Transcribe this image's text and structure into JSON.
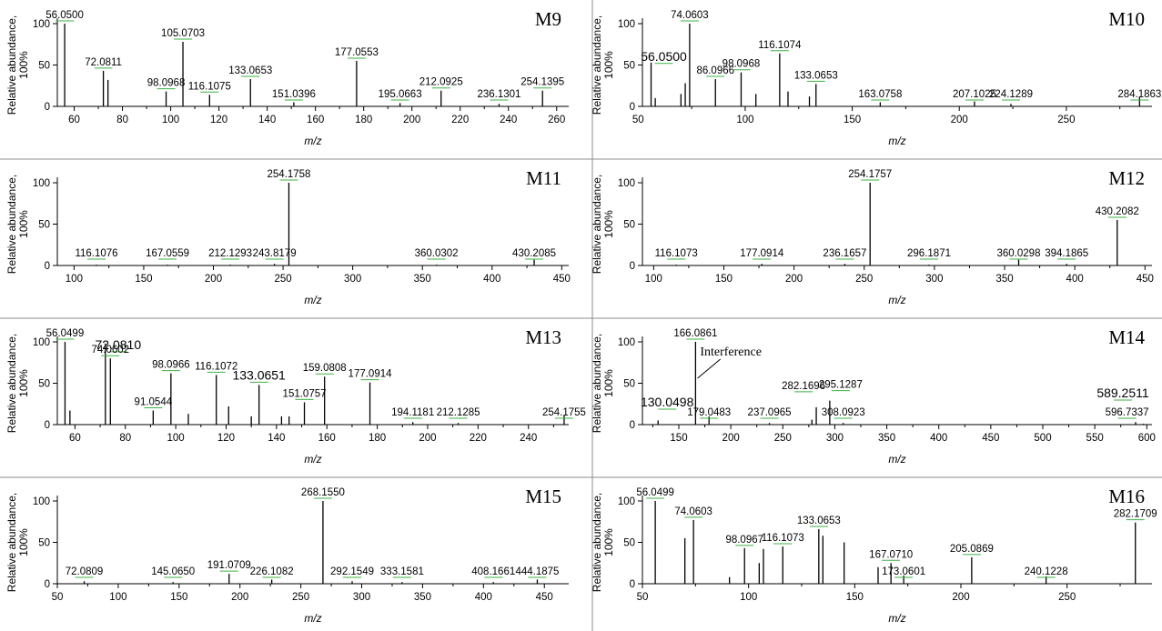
{
  "figure": {
    "grid_lines_color": "#8c8c8c",
    "leader_color": "#3cb043",
    "stick_color": "#000000"
  },
  "chart_data": [
    {
      "type": "bar",
      "panel": "M9",
      "xlabel": "m/z",
      "ylabel_lines": [
        "Relative abundance,",
        "100%"
      ],
      "xlim": [
        53,
        265
      ],
      "ylim": [
        0,
        110
      ],
      "xticks": [
        60,
        80,
        100,
        120,
        140,
        160,
        180,
        200,
        220,
        240,
        260
      ],
      "yticks": [
        0,
        50,
        100
      ],
      "peaks": [
        {
          "mz": 56.05,
          "y": 100,
          "label": "56.0500"
        },
        {
          "mz": 72.08,
          "y": 43,
          "label": "72.0811"
        },
        {
          "mz": 74.0,
          "y": 32
        },
        {
          "mz": 98.1,
          "y": 18,
          "label": "98.0968"
        },
        {
          "mz": 105.07,
          "y": 78,
          "label": "105.0703"
        },
        {
          "mz": 116.11,
          "y": 14,
          "label": "116.1075"
        },
        {
          "mz": 133.07,
          "y": 33,
          "label": "133.0653"
        },
        {
          "mz": 151.04,
          "y": 5,
          "label": "151.0396"
        },
        {
          "mz": 177.06,
          "y": 55,
          "label": "177.0553"
        },
        {
          "mz": 195.07,
          "y": 4,
          "label": "195.0663"
        },
        {
          "mz": 212.09,
          "y": 19,
          "label": "212.0925"
        },
        {
          "mz": 236.13,
          "y": 3,
          "label": "236.1301"
        },
        {
          "mz": 254.14,
          "y": 19,
          "label": "254.1395"
        }
      ]
    },
    {
      "type": "bar",
      "panel": "M10",
      "xlabel": "m/z",
      "ylabel_lines": [
        "Relative abundance,",
        "100%"
      ],
      "xlim": [
        52,
        290
      ],
      "ylim": [
        0,
        110
      ],
      "xticks": [
        50,
        100,
        150,
        200,
        250
      ],
      "yticks": [
        0,
        50,
        100
      ],
      "peaks": [
        {
          "mz": 56.05,
          "y": 53,
          "label": "56.0500"
        },
        {
          "mz": 58.0,
          "y": 10
        },
        {
          "mz": 70.0,
          "y": 15
        },
        {
          "mz": 72.0,
          "y": 28
        },
        {
          "mz": 74.06,
          "y": 100,
          "label": "74.0603"
        },
        {
          "mz": 86.1,
          "y": 33,
          "label": "86.0966"
        },
        {
          "mz": 98.1,
          "y": 41,
          "label": "98.0968"
        },
        {
          "mz": 105.0,
          "y": 15
        },
        {
          "mz": 116.11,
          "y": 64,
          "label": "116.1074"
        },
        {
          "mz": 120.0,
          "y": 18
        },
        {
          "mz": 130.0,
          "y": 12
        },
        {
          "mz": 133.07,
          "y": 27,
          "label": "133.0653"
        },
        {
          "mz": 163.08,
          "y": 5,
          "label": "163.0758"
        },
        {
          "mz": 207.1,
          "y": 6,
          "label": "207.1025"
        },
        {
          "mz": 224.13,
          "y": 3,
          "label": "224.1289"
        },
        {
          "mz": 284.19,
          "y": 11,
          "label": "284.1863"
        }
      ]
    },
    {
      "type": "bar",
      "panel": "M11",
      "xlabel": "m/z",
      "ylabel_lines": [
        "Relative abundance,",
        "100%"
      ],
      "xlim": [
        88,
        455
      ],
      "ylim": [
        0,
        110
      ],
      "xticks": [
        100,
        150,
        200,
        250,
        300,
        350,
        400,
        450
      ],
      "yticks": [
        0,
        50,
        100
      ],
      "peaks": [
        {
          "mz": 116.11,
          "y": 1,
          "label": "116.1076"
        },
        {
          "mz": 167.06,
          "y": 1,
          "label": "167.0559"
        },
        {
          "mz": 212.13,
          "y": 1,
          "label": "212.1293"
        },
        {
          "mz": 243.82,
          "y": 2,
          "label": "243.8179"
        },
        {
          "mz": 254.18,
          "y": 100,
          "label": "254.1758"
        },
        {
          "mz": 360.03,
          "y": 1,
          "label": "360.0302"
        },
        {
          "mz": 430.21,
          "y": 7,
          "label": "430.2085"
        }
      ]
    },
    {
      "type": "bar",
      "panel": "M12",
      "xlabel": "m/z",
      "ylabel_lines": [
        "Relative abundance,",
        "100%"
      ],
      "xlim": [
        92,
        455
      ],
      "ylim": [
        0,
        110
      ],
      "xticks": [
        100,
        150,
        200,
        250,
        300,
        350,
        400,
        450
      ],
      "yticks": [
        0,
        50,
        100
      ],
      "peaks": [
        {
          "mz": 116.11,
          "y": 1,
          "label": "116.1073"
        },
        {
          "mz": 177.09,
          "y": 2,
          "label": "177.0914"
        },
        {
          "mz": 236.17,
          "y": 2,
          "label": "236.1657"
        },
        {
          "mz": 254.18,
          "y": 100,
          "label": "254.1757"
        },
        {
          "mz": 296.19,
          "y": 1,
          "label": "296.1871"
        },
        {
          "mz": 360.03,
          "y": 7,
          "label": "360.0298"
        },
        {
          "mz": 394.19,
          "y": 2,
          "label": "394.1865"
        },
        {
          "mz": 430.21,
          "y": 55,
          "label": "430.2082"
        }
      ]
    },
    {
      "type": "bar",
      "panel": "M13",
      "xlabel": "m/z",
      "ylabel_lines": [
        "Relative abundance,",
        "100%"
      ],
      "xlim": [
        53,
        256
      ],
      "ylim": [
        0,
        110
      ],
      "xticks": [
        60,
        80,
        100,
        120,
        140,
        160,
        180,
        200,
        220,
        240
      ],
      "yticks": [
        0,
        50,
        100
      ],
      "peaks": [
        {
          "mz": 56.05,
          "y": 100,
          "label": "56.0499"
        },
        {
          "mz": 58.0,
          "y": 17
        },
        {
          "mz": 72.08,
          "y": 98,
          "label": "72.0810"
        },
        {
          "mz": 74.06,
          "y": 80,
          "label": "74.0602"
        },
        {
          "mz": 91.05,
          "y": 17,
          "label": "91.0544"
        },
        {
          "mz": 98.1,
          "y": 62,
          "label": "98.0966"
        },
        {
          "mz": 105.0,
          "y": 13
        },
        {
          "mz": 116.11,
          "y": 60,
          "label": "116.1072"
        },
        {
          "mz": 121.0,
          "y": 22
        },
        {
          "mz": 130.0,
          "y": 10
        },
        {
          "mz": 133.07,
          "y": 48,
          "label": "133.0651"
        },
        {
          "mz": 142.0,
          "y": 10
        },
        {
          "mz": 145.0,
          "y": 10
        },
        {
          "mz": 151.08,
          "y": 27,
          "label": "151.0757"
        },
        {
          "mz": 159.08,
          "y": 58,
          "label": "159.0808"
        },
        {
          "mz": 177.09,
          "y": 51,
          "label": "177.0914"
        },
        {
          "mz": 194.12,
          "y": 3,
          "label": "194.1181"
        },
        {
          "mz": 212.13,
          "y": 2,
          "label": "212.1285"
        },
        {
          "mz": 254.18,
          "y": 11,
          "label": "254.1755"
        }
      ]
    },
    {
      "type": "bar",
      "panel": "M14",
      "xlabel": "m/z",
      "ylabel_lines": [
        "Relative abundance,",
        "100%"
      ],
      "xlim": [
        115,
        605
      ],
      "ylim": [
        0,
        110
      ],
      "xticks": [
        150,
        200,
        250,
        300,
        350,
        400,
        450,
        500,
        550,
        600
      ],
      "yticks": [
        0,
        50,
        100
      ],
      "annotation": "Interference",
      "peaks": [
        {
          "mz": 130.05,
          "y": 5,
          "label": "130.0498"
        },
        {
          "mz": 166.09,
          "y": 100,
          "label": "166.0861"
        },
        {
          "mz": 179.05,
          "y": 10,
          "label": "179.0483"
        },
        {
          "mz": 237.1,
          "y": 2,
          "label": "237.0965"
        },
        {
          "mz": 278.0,
          "y": 6
        },
        {
          "mz": 282.17,
          "y": 21,
          "label": "282.1696"
        },
        {
          "mz": 295.13,
          "y": 29,
          "label": "295.1287"
        },
        {
          "mz": 308.09,
          "y": 2,
          "label": "308.0923"
        },
        {
          "mz": 589.25,
          "y": 3,
          "label": "589.2511"
        },
        {
          "mz": 596.73,
          "y": 1,
          "label": "596.7337"
        }
      ]
    },
    {
      "type": "bar",
      "panel": "M15",
      "xlabel": "m/z",
      "ylabel_lines": [
        "Relative abundance,",
        "100%"
      ],
      "xlim": [
        50,
        470
      ],
      "ylim": [
        0,
        110
      ],
      "xticks": [
        50,
        100,
        150,
        200,
        250,
        300,
        350,
        400,
        450
      ],
      "yticks": [
        0,
        50,
        100
      ],
      "peaks": [
        {
          "mz": 72.08,
          "y": 3,
          "label": "72.0809"
        },
        {
          "mz": 145.07,
          "y": 2,
          "label": "145.0650"
        },
        {
          "mz": 191.07,
          "y": 12,
          "label": "191.0709"
        },
        {
          "mz": 226.11,
          "y": 5,
          "label": "226.1082"
        },
        {
          "mz": 268.16,
          "y": 100,
          "label": "268.1550"
        },
        {
          "mz": 292.15,
          "y": 3,
          "label": "292.1549"
        },
        {
          "mz": 333.16,
          "y": 2,
          "label": "333.1581"
        },
        {
          "mz": 408.17,
          "y": 2,
          "label": "408.1661"
        },
        {
          "mz": 444.19,
          "y": 5,
          "label": "444.1875"
        }
      ]
    },
    {
      "type": "bar",
      "panel": "M16",
      "xlabel": "m/z",
      "ylabel_lines": [
        "Relative abundance,",
        "100%"
      ],
      "xlim": [
        50,
        290
      ],
      "ylim": [
        0,
        110
      ],
      "xticks": [
        50,
        100,
        150,
        200,
        250
      ],
      "yticks": [
        0,
        50,
        100
      ],
      "peaks": [
        {
          "mz": 56.05,
          "y": 100,
          "label": "56.0499"
        },
        {
          "mz": 70.0,
          "y": 55
        },
        {
          "mz": 74.06,
          "y": 77,
          "label": "74.0603"
        },
        {
          "mz": 91.0,
          "y": 8
        },
        {
          "mz": 98.1,
          "y": 43,
          "label": "98.0967"
        },
        {
          "mz": 105.0,
          "y": 25
        },
        {
          "mz": 107.0,
          "y": 42
        },
        {
          "mz": 116.11,
          "y": 45,
          "label": "116.1073"
        },
        {
          "mz": 133.07,
          "y": 66,
          "label": "133.0653"
        },
        {
          "mz": 135.0,
          "y": 58
        },
        {
          "mz": 145.0,
          "y": 50
        },
        {
          "mz": 161.0,
          "y": 20
        },
        {
          "mz": 167.07,
          "y": 25,
          "label": "167.0710"
        },
        {
          "mz": 173.06,
          "y": 10,
          "label": "173.0601"
        },
        {
          "mz": 205.09,
          "y": 32,
          "label": "205.0869"
        },
        {
          "mz": 240.12,
          "y": 9,
          "label": "240.1228"
        },
        {
          "mz": 282.17,
          "y": 74,
          "label": "282.1709"
        }
      ]
    }
  ]
}
